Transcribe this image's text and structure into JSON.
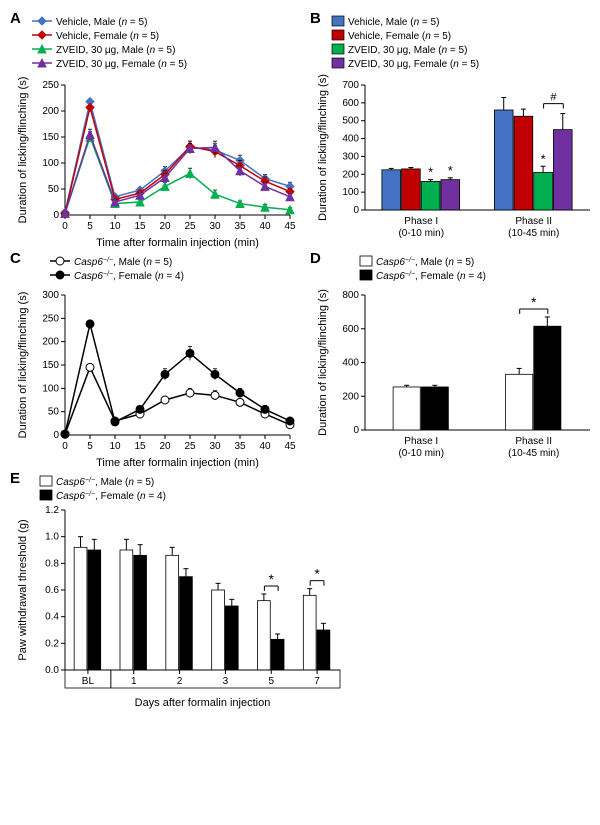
{
  "panelA": {
    "type": "line",
    "label": "A",
    "x": [
      0,
      5,
      10,
      15,
      20,
      25,
      30,
      35,
      40,
      45
    ],
    "xlim": [
      0,
      45
    ],
    "xtick_step": 5,
    "ylim": [
      0,
      250
    ],
    "ytick_step": 50,
    "xlabel": "Time after formalin injection (min)",
    "ylabel": "Duration of licking/flinching (s)",
    "series": [
      {
        "name": "Vehicle, Male",
        "n": 5,
        "marker": "diamond",
        "color": "#4472c4",
        "y": [
          5,
          218,
          35,
          48,
          85,
          130,
          125,
          105,
          70,
          55
        ],
        "err": [
          0,
          0,
          5,
          5,
          8,
          12,
          12,
          10,
          8,
          8
        ]
      },
      {
        "name": "Vehicle, Female",
        "n": 5,
        "marker": "diamond",
        "color": "#c00000",
        "y": [
          3,
          207,
          30,
          42,
          78,
          132,
          122,
          95,
          65,
          45
        ],
        "err": [
          0,
          0,
          5,
          5,
          8,
          10,
          12,
          10,
          8,
          6
        ]
      },
      {
        "name": "ZVEID, 30 μg, Male",
        "n": 5,
        "marker": "triangle",
        "color": "#00b050",
        "y": [
          3,
          150,
          22,
          25,
          55,
          80,
          40,
          22,
          15,
          10
        ],
        "err": [
          0,
          10,
          5,
          5,
          8,
          10,
          8,
          5,
          5,
          4
        ]
      },
      {
        "name": "ZVEID, 30 μg, Female",
        "n": 5,
        "marker": "triangle",
        "color": "#7030a0",
        "y": [
          3,
          155,
          25,
          38,
          72,
          128,
          130,
          85,
          55,
          35
        ],
        "err": [
          0,
          10,
          5,
          5,
          8,
          10,
          12,
          10,
          8,
          6
        ]
      }
    ],
    "title_fontsize": 11,
    "background_color": "#ffffff"
  },
  "panelB": {
    "type": "bar",
    "label": "B",
    "groups": [
      "Phase I\n(0-10 min)",
      "Phase II\n(10-45 min)"
    ],
    "ylim": [
      0,
      700
    ],
    "ytick_step": 100,
    "ylabel": "Duration of licking/flinching (s)",
    "bars": [
      {
        "name": "Vehicle, Male",
        "n": 5,
        "color": "#4472c4",
        "values": [
          225,
          560
        ],
        "err": [
          8,
          70
        ],
        "sig": [
          "",
          ""
        ]
      },
      {
        "name": "Vehicle, Female",
        "n": 5,
        "color": "#c00000",
        "values": [
          230,
          525
        ],
        "err": [
          8,
          40
        ],
        "sig": [
          "",
          ""
        ]
      },
      {
        "name": "ZVEID, 30 μg, Male",
        "n": 5,
        "color": "#00b050",
        "values": [
          160,
          210
        ],
        "err": [
          10,
          35
        ],
        "sig": [
          "*",
          "*"
        ]
      },
      {
        "name": "ZVEID, 30 μg, Female",
        "n": 5,
        "color": "#7030a0",
        "values": [
          170,
          450
        ],
        "err": [
          10,
          90
        ],
        "sig": [
          "*",
          ""
        ]
      }
    ],
    "hash_marker": "#",
    "background_color": "#ffffff"
  },
  "panelC": {
    "type": "line",
    "label": "C",
    "x": [
      0,
      5,
      10,
      15,
      20,
      25,
      30,
      35,
      40,
      45
    ],
    "xlim": [
      0,
      45
    ],
    "xtick_step": 5,
    "ylim": [
      0,
      300
    ],
    "ytick_step": 50,
    "xlabel": "Time after formalin injection (min)",
    "ylabel": "Duration of licking/flinching (s)",
    "series": [
      {
        "name": "Casp6−/−, Male",
        "n": 5,
        "marker": "circle",
        "color": "#ffffff",
        "stroke": "#000000",
        "y": [
          2,
          145,
          30,
          45,
          75,
          90,
          85,
          70,
          45,
          22
        ],
        "err": [
          0,
          0,
          5,
          5,
          8,
          10,
          10,
          8,
          8,
          6
        ]
      },
      {
        "name": "Casp6−/−, Female",
        "n": 4,
        "marker": "circle",
        "color": "#000000",
        "stroke": "#000000",
        "y": [
          2,
          238,
          28,
          55,
          130,
          175,
          130,
          90,
          55,
          30
        ],
        "err": [
          0,
          0,
          5,
          6,
          12,
          15,
          12,
          10,
          8,
          6
        ]
      }
    ],
    "background_color": "#ffffff"
  },
  "panelD": {
    "type": "bar",
    "label": "D",
    "groups": [
      "Phase I\n(0-10 min)",
      "Phase II\n(10-45 min)"
    ],
    "ylim": [
      0,
      800
    ],
    "ytick_step": 200,
    "ylabel": "Duration of licking/flinching (s)",
    "bars": [
      {
        "name": "Casp6−/−, Male",
        "n": 5,
        "color": "#ffffff",
        "stroke": "#000000",
        "values": [
          255,
          330
        ],
        "err": [
          10,
          35
        ],
        "sig": [
          "",
          ""
        ]
      },
      {
        "name": "Casp6−/−, Female",
        "n": 4,
        "color": "#000000",
        "stroke": "#000000",
        "values": [
          255,
          615
        ],
        "err": [
          10,
          55
        ],
        "sig": [
          "",
          "*"
        ]
      }
    ],
    "background_color": "#ffffff"
  },
  "panelE": {
    "type": "bar",
    "label": "E",
    "categories": [
      "BL",
      "1",
      "2",
      "3",
      "5",
      "7"
    ],
    "ylim": [
      0,
      1.2
    ],
    "ytick_step": 0.2,
    "xlabel": "Days after formalin injection",
    "ylabel": "Paw withdrawal threshold (g)",
    "bars": [
      {
        "name": "Casp6−/−, Male",
        "n": 5,
        "color": "#ffffff",
        "stroke": "#000000",
        "values": [
          0.92,
          0.9,
          0.86,
          0.6,
          0.52,
          0.56
        ],
        "err": [
          0.08,
          0.08,
          0.06,
          0.05,
          0.05,
          0.05
        ]
      },
      {
        "name": "Casp6−/−, Female",
        "n": 4,
        "color": "#000000",
        "stroke": "#000000",
        "values": [
          0.9,
          0.86,
          0.7,
          0.48,
          0.23,
          0.3
        ],
        "err": [
          0.08,
          0.08,
          0.06,
          0.05,
          0.04,
          0.05
        ]
      }
    ],
    "sig_positions": [
      4,
      5
    ],
    "sig_marker": "*",
    "background_color": "#ffffff"
  },
  "styling": {
    "axis_color": "#000000",
    "font_family": "Arial",
    "tick_fontsize": 10,
    "label_fontsize": 11,
    "line_width": 1.5,
    "marker_size": 5,
    "bar_border": "#000000",
    "error_cap": 3
  }
}
